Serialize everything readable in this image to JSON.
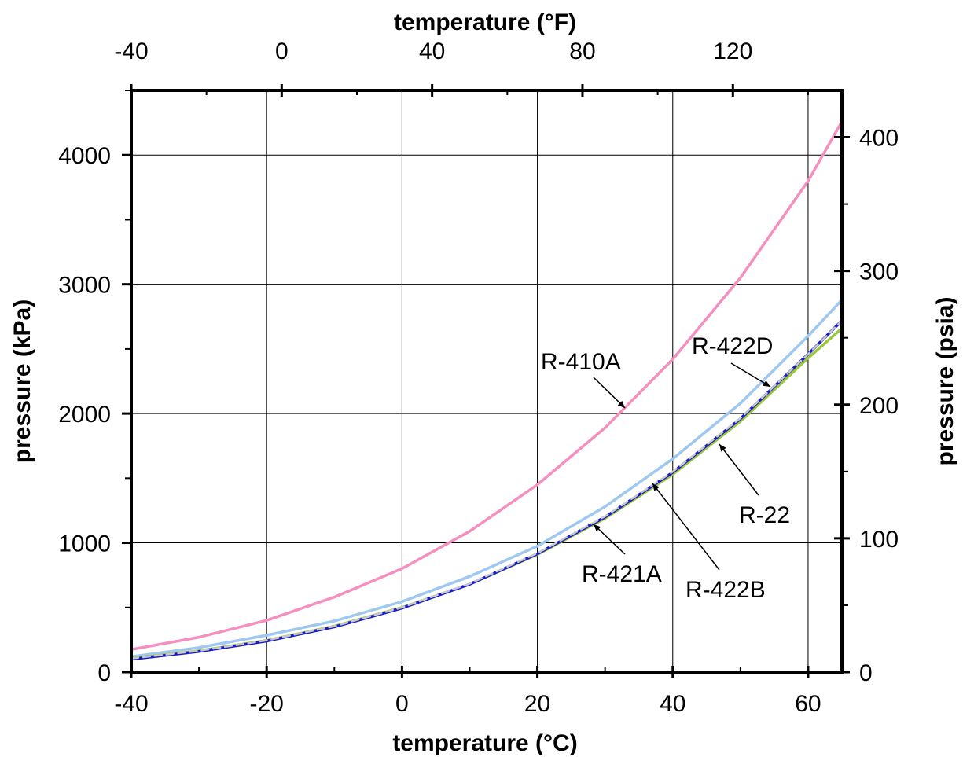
{
  "chart_data": {
    "type": "line",
    "title": "",
    "xlabel": "temperature (°C)",
    "x2label": "temperature (°F)",
    "ylabel": "pressure (kPa)",
    "y2label": "pressure (psia)",
    "xlim": [
      -40,
      65
    ],
    "ylim": [
      0,
      4500
    ],
    "x2lim": [
      -40,
      149
    ],
    "y2lim": [
      0,
      435
    ],
    "grid": true,
    "legend": "none",
    "x_ticks": [
      "-40",
      "-20",
      "0",
      "20",
      "40",
      "60"
    ],
    "y_ticks": [
      "0",
      "1000",
      "2000",
      "3000",
      "4000"
    ],
    "x2_ticks": [
      "-40",
      "0",
      "40",
      "80",
      "120"
    ],
    "y2_ticks": [
      "0",
      "100",
      "200",
      "300",
      "400"
    ],
    "series": [
      {
        "name": "R-410A",
        "color": "#f48fc0",
        "dashed": false,
        "x": [
          -40,
          -30,
          -20,
          -10,
          0,
          10,
          20,
          30,
          40,
          50,
          60,
          65
        ],
        "y": [
          175,
          270,
          400,
          580,
          800,
          1090,
          1450,
          1890,
          2420,
          3050,
          3800,
          4260
        ]
      },
      {
        "name": "R-422D",
        "color": "#9ec8f0",
        "dashed": false,
        "x": [
          -40,
          -30,
          -20,
          -10,
          0,
          10,
          20,
          30,
          40,
          50,
          60,
          65
        ],
        "y": [
          120,
          190,
          285,
          395,
          545,
          740,
          975,
          1280,
          1650,
          2080,
          2600,
          2880
        ]
      },
      {
        "name": "R-22",
        "color": "#9ac83c",
        "dashed": false,
        "x": [
          -40,
          -30,
          -20,
          -10,
          0,
          10,
          20,
          30,
          40,
          50,
          60,
          65
        ],
        "y": [
          105,
          165,
          245,
          355,
          500,
          680,
          910,
          1190,
          1530,
          1940,
          2430,
          2660
        ]
      },
      {
        "name": "R-421A",
        "color": "#1a1acc",
        "dashed": false,
        "x": [
          -40,
          -30,
          -20,
          -10,
          0,
          10,
          20,
          30,
          40,
          50,
          60,
          65
        ],
        "y": [
          100,
          160,
          240,
          350,
          495,
          680,
          915,
          1200,
          1545,
          1960,
          2460,
          2720
        ]
      },
      {
        "name": "R-422B",
        "color": "#c8c8c8",
        "dashed": true,
        "x": [
          -40,
          -30,
          -20,
          -10,
          0,
          10,
          20,
          30,
          40,
          50,
          60,
          65
        ],
        "y": [
          105,
          165,
          245,
          355,
          500,
          685,
          920,
          1205,
          1550,
          1965,
          2460,
          2720
        ]
      }
    ],
    "annotations": [
      {
        "text": "R-410A",
        "series": "R-410A"
      },
      {
        "text": "R-422D",
        "series": "R-422D"
      },
      {
        "text": "R-22",
        "series": "R-22"
      },
      {
        "text": "R-421A",
        "series": "R-421A"
      },
      {
        "text": "R-422B",
        "series": "R-422B"
      }
    ]
  }
}
